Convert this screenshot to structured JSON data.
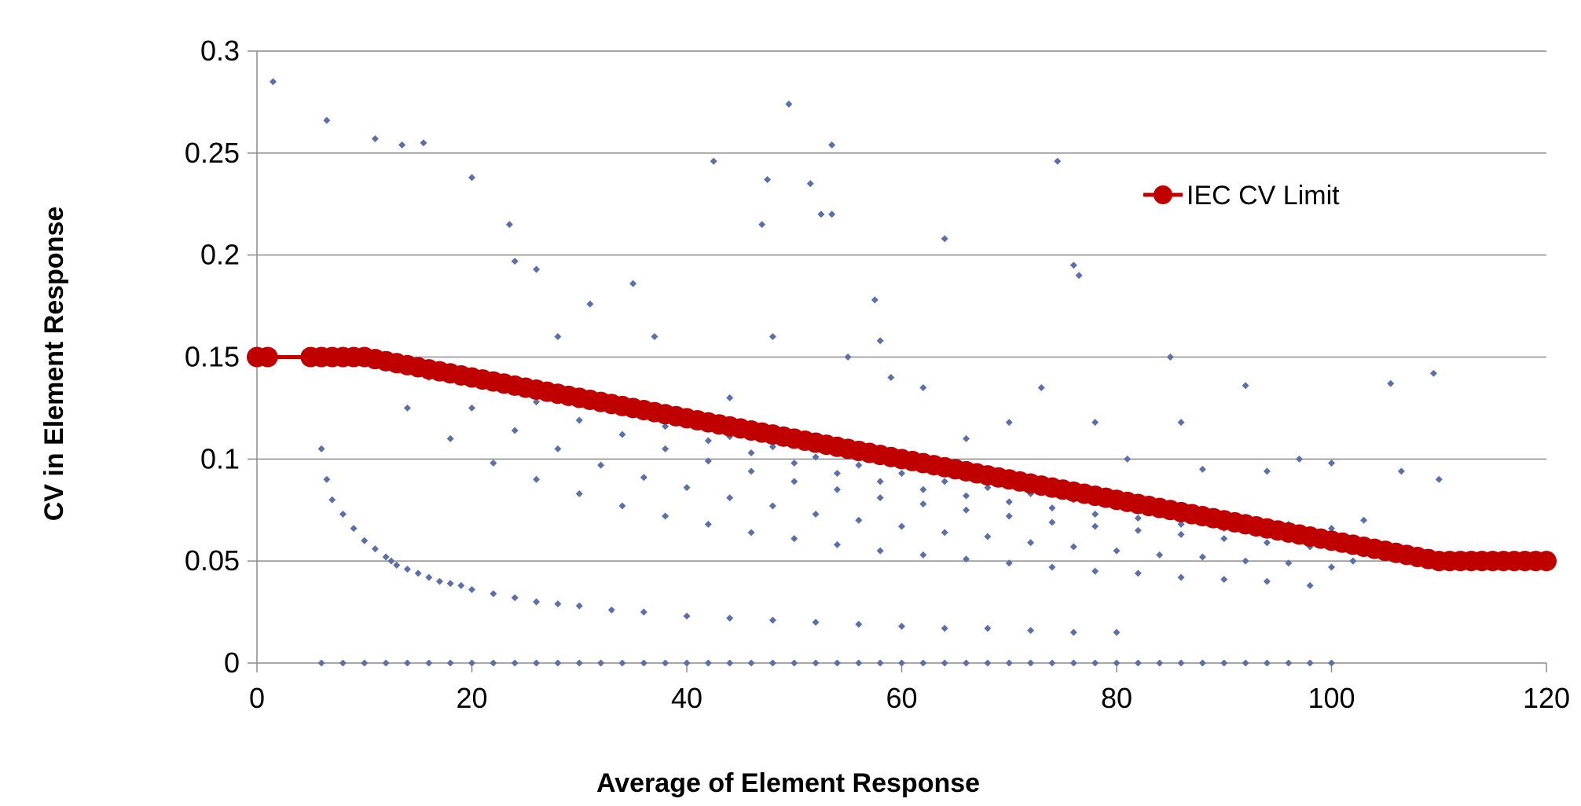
{
  "chart_data": {
    "type": "scatter",
    "title": "",
    "xlabel": "Average of Element Response",
    "ylabel": "CV in Element Response",
    "xlim": [
      0,
      120
    ],
    "ylim": [
      0,
      0.3
    ],
    "x_ticks": [
      0,
      20,
      40,
      60,
      80,
      100,
      120
    ],
    "x_tick_labels": [
      "0",
      "20",
      "40",
      "60",
      "80",
      "100",
      "120"
    ],
    "y_ticks": [
      0,
      0.05,
      0.1,
      0.15,
      0.2,
      0.25,
      0.3
    ],
    "y_tick_labels": [
      "0",
      "0.05",
      "0.1",
      "0.15",
      "0.2",
      "0.25",
      "0.3"
    ],
    "grid": "horizontal",
    "legend_position": "top-right",
    "series": [
      {
        "name": "",
        "kind": "scatter",
        "marker": "diamond",
        "color": "#5B6FA8",
        "x": [
          1.5,
          6.5,
          11,
          13.5,
          15.5,
          20,
          23.5,
          42.5,
          47.5,
          49.5,
          51.5,
          53.5,
          52.5,
          53.5,
          47,
          74.5,
          64,
          76,
          76.5,
          57.5,
          58,
          59,
          85,
          92,
          105.5,
          109.5,
          110,
          106.5,
          94,
          103,
          35,
          31,
          24,
          26,
          28,
          37,
          44,
          48,
          55,
          62,
          66,
          70,
          73,
          78,
          81,
          86,
          88,
          97,
          100,
          102,
          6,
          6.5,
          7,
          8,
          9,
          10,
          11,
          12,
          12.5,
          13,
          14,
          15,
          16,
          17,
          18,
          19,
          20,
          22,
          24,
          26,
          28,
          30,
          33,
          36,
          40,
          44,
          48,
          52,
          56,
          60,
          64,
          68,
          72,
          76,
          80,
          6,
          8,
          10,
          12,
          14,
          16,
          18,
          20,
          22,
          24,
          26,
          28,
          30,
          32,
          34,
          36,
          38,
          40,
          42,
          44,
          46,
          48,
          50,
          52,
          54,
          56,
          58,
          60,
          62,
          64,
          66,
          68,
          70,
          72,
          74,
          76,
          78,
          80,
          82,
          84,
          86,
          88,
          90,
          92,
          94,
          96,
          98,
          100,
          10,
          14,
          18,
          22,
          26,
          30,
          34,
          38,
          42,
          46,
          50,
          54,
          58,
          62,
          66,
          70,
          74,
          78,
          82,
          86,
          90,
          94,
          98,
          16,
          20,
          24,
          28,
          32,
          36,
          40,
          44,
          48,
          52,
          56,
          60,
          64,
          68,
          72,
          76,
          80,
          84,
          88,
          92,
          96,
          100,
          22,
          26,
          30,
          34,
          38,
          42,
          46,
          50,
          54,
          58,
          62,
          66,
          70,
          74,
          78,
          82,
          86,
          90,
          94,
          98,
          30,
          34,
          38,
          42,
          46,
          50,
          54,
          58,
          62,
          66,
          70,
          74,
          78,
          82,
          86,
          90,
          94,
          40,
          44,
          48,
          52,
          56,
          60,
          64,
          68,
          72,
          76,
          80,
          84,
          88,
          92,
          96,
          100,
          102
        ],
        "y": [
          0.285,
          0.266,
          0.257,
          0.254,
          0.255,
          0.238,
          0.215,
          0.246,
          0.237,
          0.274,
          0.235,
          0.22,
          0.22,
          0.254,
          0.215,
          0.246,
          0.208,
          0.195,
          0.19,
          0.178,
          0.158,
          0.14,
          0.15,
          0.136,
          0.137,
          0.142,
          0.09,
          0.094,
          0.094,
          0.07,
          0.186,
          0.176,
          0.197,
          0.193,
          0.16,
          0.16,
          0.13,
          0.16,
          0.15,
          0.135,
          0.11,
          0.118,
          0.135,
          0.118,
          0.1,
          0.118,
          0.095,
          0.1,
          0.098,
          0.05,
          0.105,
          0.09,
          0.08,
          0.073,
          0.066,
          0.06,
          0.056,
          0.052,
          0.05,
          0.048,
          0.046,
          0.044,
          0.042,
          0.04,
          0.039,
          0.038,
          0.036,
          0.034,
          0.032,
          0.03,
          0.029,
          0.028,
          0.026,
          0.025,
          0.023,
          0.022,
          0.021,
          0.02,
          0.019,
          0.018,
          0.017,
          0.017,
          0.016,
          0.015,
          0.015,
          0.0,
          0.0,
          0.0,
          0.0,
          0.0,
          0.0,
          0.0,
          0.0,
          0.0,
          0.0,
          0.0,
          0.0,
          0.0,
          0.0,
          0.0,
          0.0,
          0.0,
          0.0,
          0.0,
          0.0,
          0.0,
          0.0,
          0.0,
          0.0,
          0.0,
          0.0,
          0.0,
          0.0,
          0.0,
          0.0,
          0.0,
          0.0,
          0.0,
          0.0,
          0.0,
          0.0,
          0.0,
          0.0,
          0.0,
          0.0,
          0.0,
          0.0,
          0.0,
          0.0,
          0.0,
          0.0,
          0.0,
          0.0,
          0.15,
          0.125,
          0.11,
          0.098,
          0.09,
          0.083,
          0.077,
          0.072,
          0.068,
          0.064,
          0.061,
          0.058,
          0.055,
          0.053,
          0.051,
          0.049,
          0.047,
          0.045,
          0.044,
          0.042,
          0.041,
          0.04,
          0.038,
          0.14,
          0.125,
          0.114,
          0.105,
          0.097,
          0.091,
          0.086,
          0.081,
          0.077,
          0.073,
          0.07,
          0.067,
          0.064,
          0.062,
          0.059,
          0.057,
          0.055,
          0.053,
          0.052,
          0.05,
          0.049,
          0.047,
          0.138,
          0.128,
          0.119,
          0.112,
          0.105,
          0.099,
          0.094,
          0.089,
          0.085,
          0.081,
          0.078,
          0.075,
          0.072,
          0.069,
          0.067,
          0.065,
          0.063,
          0.061,
          0.059,
          0.057,
          0.132,
          0.123,
          0.116,
          0.109,
          0.103,
          0.098,
          0.093,
          0.089,
          0.085,
          0.082,
          0.079,
          0.076,
          0.073,
          0.071,
          0.068,
          0.066,
          0.064,
          0.117,
          0.111,
          0.106,
          0.101,
          0.097,
          0.093,
          0.089,
          0.086,
          0.083,
          0.08,
          0.077,
          0.075,
          0.072,
          0.07,
          0.068,
          0.066,
          0.05
        ]
      },
      {
        "name": "IEC CV Limit",
        "kind": "line",
        "marker": "circle",
        "color": "#C00000",
        "x": [
          0,
          1,
          5,
          6,
          7,
          8,
          9,
          10,
          11,
          12,
          13,
          14,
          15,
          16,
          17,
          18,
          19,
          20,
          21,
          22,
          23,
          24,
          25,
          26,
          27,
          28,
          29,
          30,
          31,
          32,
          33,
          34,
          35,
          36,
          37,
          38,
          39,
          40,
          41,
          42,
          43,
          44,
          45,
          46,
          47,
          48,
          49,
          50,
          51,
          52,
          53,
          54,
          55,
          56,
          57,
          58,
          59,
          60,
          61,
          62,
          63,
          64,
          65,
          66,
          67,
          68,
          69,
          70,
          71,
          72,
          73,
          74,
          75,
          76,
          77,
          78,
          79,
          80,
          81,
          82,
          83,
          84,
          85,
          86,
          87,
          88,
          89,
          90,
          91,
          92,
          93,
          94,
          95,
          96,
          97,
          98,
          99,
          100,
          101,
          102,
          103,
          104,
          105,
          106,
          107,
          108,
          109,
          110,
          111,
          112,
          113,
          114,
          115,
          116,
          117,
          118,
          119,
          120
        ],
        "y": [
          0.15,
          0.15,
          0.15,
          0.15,
          0.15,
          0.15,
          0.15,
          0.15,
          0.149,
          0.148,
          0.147,
          0.146,
          0.145,
          0.144,
          0.143,
          0.142,
          0.141,
          0.14,
          0.139,
          0.138,
          0.137,
          0.136,
          0.135,
          0.134,
          0.133,
          0.132,
          0.131,
          0.13,
          0.129,
          0.128,
          0.127,
          0.126,
          0.125,
          0.124,
          0.123,
          0.122,
          0.121,
          0.12,
          0.119,
          0.118,
          0.117,
          0.116,
          0.115,
          0.114,
          0.113,
          0.112,
          0.111,
          0.11,
          0.109,
          0.108,
          0.107,
          0.106,
          0.105,
          0.104,
          0.103,
          0.102,
          0.101,
          0.1,
          0.099,
          0.098,
          0.097,
          0.096,
          0.095,
          0.094,
          0.093,
          0.092,
          0.091,
          0.09,
          0.089,
          0.088,
          0.087,
          0.086,
          0.085,
          0.084,
          0.083,
          0.082,
          0.081,
          0.08,
          0.079,
          0.078,
          0.077,
          0.076,
          0.075,
          0.074,
          0.073,
          0.072,
          0.071,
          0.07,
          0.069,
          0.068,
          0.067,
          0.066,
          0.065,
          0.064,
          0.063,
          0.062,
          0.061,
          0.06,
          0.059,
          0.058,
          0.057,
          0.056,
          0.055,
          0.054,
          0.053,
          0.052,
          0.051,
          0.05,
          0.05,
          0.05,
          0.05,
          0.05,
          0.05,
          0.05,
          0.05,
          0.05,
          0.05,
          0.05
        ]
      }
    ]
  }
}
